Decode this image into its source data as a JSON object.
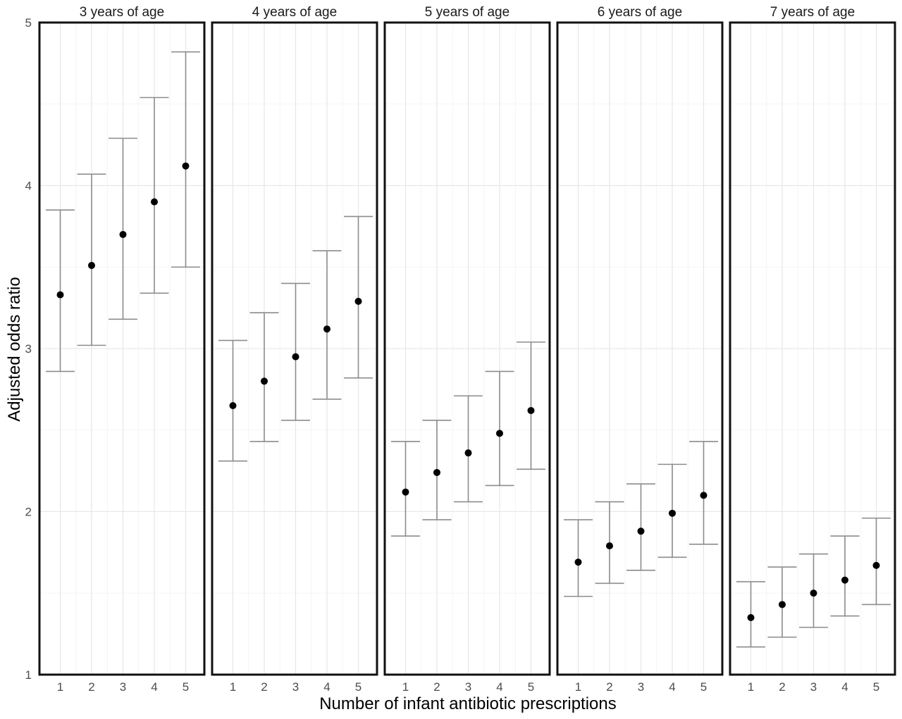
{
  "chart_data": {
    "type": "scatter",
    "subtype": "point-errorbar-faceted",
    "xlabel": "Number of infant antibiotic prescriptions",
    "ylabel": "Adjusted odds ratio",
    "x": [
      1,
      2,
      3,
      4,
      5
    ],
    "x_ticks": [
      "1",
      "2",
      "3",
      "4",
      "5"
    ],
    "y_ticks": [
      "1",
      "2",
      "3",
      "4",
      "5"
    ],
    "ylim": [
      1,
      5
    ],
    "grid": true,
    "colors": {
      "point": "#000000",
      "errorbar": "#8c8c8c",
      "grid": "#e4e4e4",
      "border": "#111111"
    },
    "panels": [
      {
        "title": "3 years of age",
        "estimate": [
          3.33,
          3.51,
          3.7,
          3.9,
          4.12
        ],
        "lower": [
          2.86,
          3.02,
          3.18,
          3.34,
          3.5
        ],
        "upper": [
          3.85,
          4.07,
          4.29,
          4.54,
          4.82
        ]
      },
      {
        "title": "4 years of age",
        "estimate": [
          2.65,
          2.8,
          2.95,
          3.12,
          3.29
        ],
        "lower": [
          2.31,
          2.43,
          2.56,
          2.69,
          2.82
        ],
        "upper": [
          3.05,
          3.22,
          3.4,
          3.6,
          3.81
        ]
      },
      {
        "title": "5 years of age",
        "estimate": [
          2.12,
          2.24,
          2.36,
          2.48,
          2.62
        ],
        "lower": [
          1.85,
          1.95,
          2.06,
          2.16,
          2.26
        ],
        "upper": [
          2.43,
          2.56,
          2.71,
          2.86,
          3.04
        ]
      },
      {
        "title": "6 years of age",
        "estimate": [
          1.69,
          1.79,
          1.88,
          1.99,
          2.1
        ],
        "lower": [
          1.48,
          1.56,
          1.64,
          1.72,
          1.8
        ],
        "upper": [
          1.95,
          2.06,
          2.17,
          2.29,
          2.43
        ]
      },
      {
        "title": "7 years of age",
        "estimate": [
          1.35,
          1.43,
          1.5,
          1.58,
          1.67
        ],
        "lower": [
          1.17,
          1.23,
          1.29,
          1.36,
          1.43
        ],
        "upper": [
          1.57,
          1.66,
          1.74,
          1.85,
          1.96
        ]
      }
    ]
  }
}
